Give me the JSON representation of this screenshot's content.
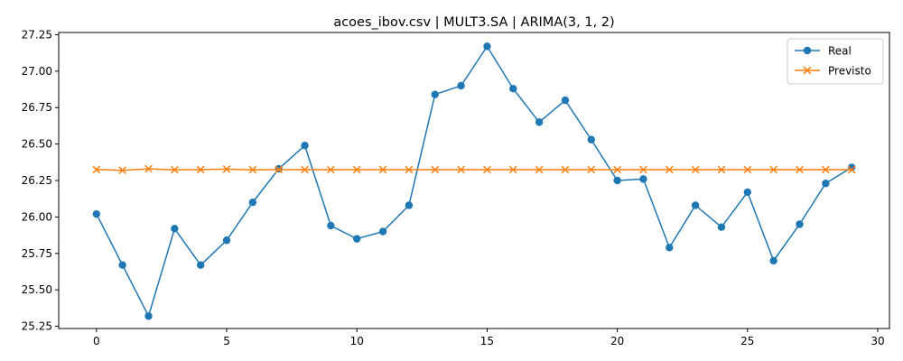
{
  "chart_data": {
    "type": "line",
    "title": "acoes_ibov.csv | MULT3.SA | ARIMA(3, 1, 2)",
    "xlabel": "",
    "ylabel": "",
    "xlim": [
      -1.45,
      30.45
    ],
    "ylim": [
      25.235,
      27.265
    ],
    "xticks": [
      0,
      5,
      10,
      15,
      20,
      25,
      30
    ],
    "yticks": [
      25.25,
      25.5,
      25.75,
      26.0,
      26.25,
      26.5,
      26.75,
      27.0,
      27.25
    ],
    "ytick_labels": [
      "25.25",
      "25.50",
      "25.75",
      "26.00",
      "26.25",
      "26.50",
      "26.75",
      "27.00",
      "27.25"
    ],
    "grid": false,
    "legend_position": "top-right",
    "x": [
      0,
      1,
      2,
      3,
      4,
      5,
      6,
      7,
      8,
      9,
      10,
      11,
      12,
      13,
      14,
      15,
      16,
      17,
      18,
      19,
      20,
      21,
      22,
      23,
      24,
      25,
      26,
      27,
      28,
      29
    ],
    "series": [
      {
        "name": "Real",
        "color": "#1f77b4",
        "marker": "circle",
        "values": [
          26.02,
          25.67,
          25.32,
          25.92,
          25.67,
          25.84,
          26.1,
          26.33,
          26.49,
          25.94,
          25.85,
          25.9,
          26.08,
          26.84,
          26.9,
          27.17,
          26.88,
          26.65,
          26.8,
          26.53,
          26.25,
          26.26,
          25.79,
          26.08,
          25.93,
          26.17,
          25.7,
          25.95,
          26.23,
          26.34
        ]
      },
      {
        "name": "Previsto",
        "color": "#ff7f0e",
        "marker": "x",
        "values": [
          26.325,
          26.32,
          26.33,
          26.323,
          26.325,
          26.328,
          26.323,
          26.325,
          26.324,
          26.324,
          26.324,
          26.324,
          26.324,
          26.324,
          26.324,
          26.324,
          26.324,
          26.324,
          26.324,
          26.324,
          26.324,
          26.324,
          26.324,
          26.324,
          26.324,
          26.324,
          26.324,
          26.324,
          26.324,
          26.324
        ]
      }
    ]
  }
}
